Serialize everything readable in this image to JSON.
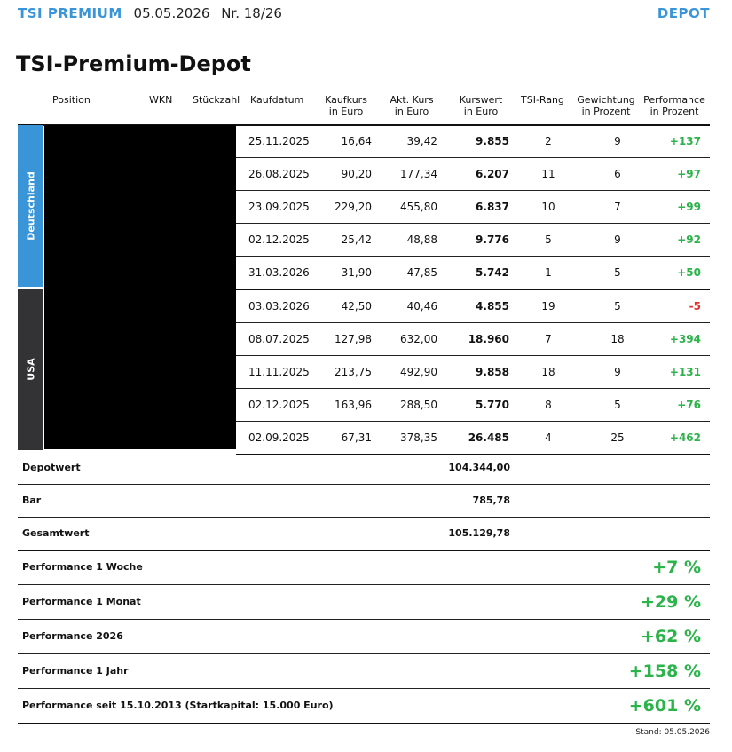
{
  "header": {
    "brand": "TSI PREMIUM",
    "date": "05.05.2026",
    "issue": "Nr. 18/26",
    "section": "DEPOT"
  },
  "title": "TSI-Premium-Depot",
  "columns": {
    "position": "Position",
    "wkn": "WKN",
    "stueckzahl": "Stückzahl",
    "kaufdatum": "Kaufdatum",
    "kaufkurs_1": "Kaufkurs",
    "kaufkurs_2": "in Euro",
    "akt_kurs_1": "Akt. Kurs",
    "akt_kurs_2": "in Euro",
    "kurswert_1": "Kurswert",
    "kurswert_2": "in Euro",
    "tsi_rang": "TSI-Rang",
    "gewichtung_1": "Gewichtung",
    "gewichtung_2": "in Prozent",
    "performance_1": "Performance",
    "performance_2": "in Prozent"
  },
  "regions": {
    "de": "Deutschland",
    "us": "USA"
  },
  "rows": [
    {
      "kaufdatum": "25.11.2025",
      "kaufkurs": "16,64",
      "akt_kurs": "39,42",
      "kurswert": "9.855",
      "rang": "2",
      "gewichtung": "9",
      "performance": "+137"
    },
    {
      "kaufdatum": "26.08.2025",
      "kaufkurs": "90,20",
      "akt_kurs": "177,34",
      "kurswert": "6.207",
      "rang": "11",
      "gewichtung": "6",
      "performance": "+97"
    },
    {
      "kaufdatum": "23.09.2025",
      "kaufkurs": "229,20",
      "akt_kurs": "455,80",
      "kurswert": "6.837",
      "rang": "10",
      "gewichtung": "7",
      "performance": "+99"
    },
    {
      "kaufdatum": "02.12.2025",
      "kaufkurs": "25,42",
      "akt_kurs": "48,88",
      "kurswert": "9.776",
      "rang": "5",
      "gewichtung": "9",
      "performance": "+92"
    },
    {
      "kaufdatum": "31.03.2026",
      "kaufkurs": "31,90",
      "akt_kurs": "47,85",
      "kurswert": "5.742",
      "rang": "1",
      "gewichtung": "5",
      "performance": "+50"
    },
    {
      "kaufdatum": "03.03.2026",
      "kaufkurs": "42,50",
      "akt_kurs": "40,46",
      "kurswert": "4.855",
      "rang": "19",
      "gewichtung": "5",
      "performance": "-5"
    },
    {
      "kaufdatum": "08.07.2025",
      "kaufkurs": "127,98",
      "akt_kurs": "632,00",
      "kurswert": "18.960",
      "rang": "7",
      "gewichtung": "18",
      "performance": "+394"
    },
    {
      "kaufdatum": "11.11.2025",
      "kaufkurs": "213,75",
      "akt_kurs": "492,90",
      "kurswert": "9.858",
      "rang": "18",
      "gewichtung": "9",
      "performance": "+131"
    },
    {
      "kaufdatum": "02.12.2025",
      "kaufkurs": "163,96",
      "akt_kurs": "288,50",
      "kurswert": "5.770",
      "rang": "8",
      "gewichtung": "5",
      "performance": "+76"
    },
    {
      "kaufdatum": "02.09.2025",
      "kaufkurs": "67,31",
      "akt_kurs": "378,35",
      "kurswert": "26.485",
      "rang": "4",
      "gewichtung": "25",
      "performance": "+462"
    }
  ],
  "summary": {
    "depotwert_label": "Depotwert",
    "depotwert": "104.344,00",
    "bar_label": "Bar",
    "bar": "785,78",
    "gesamtwert_label": "Gesamtwert",
    "gesamtwert": "105.129,78"
  },
  "performance": [
    {
      "label": "Performance 1 Woche",
      "value": "+7 %"
    },
    {
      "label": "Performance 1 Monat",
      "value": "+29 %"
    },
    {
      "label": "Performance 2026",
      "value": "+62 %"
    },
    {
      "label": "Performance 1 Jahr",
      "value": "+158 %"
    },
    {
      "label": "Performance seit 15.10.2013 (Startkapital: 15.000 Euro)",
      "value": "+601 %"
    }
  ],
  "stand": "Stand: 05.05.2026",
  "colors": {
    "accent": "#3a94d8",
    "positive": "#2cb34a",
    "negative": "#e03030",
    "usa_band": "#333335"
  }
}
